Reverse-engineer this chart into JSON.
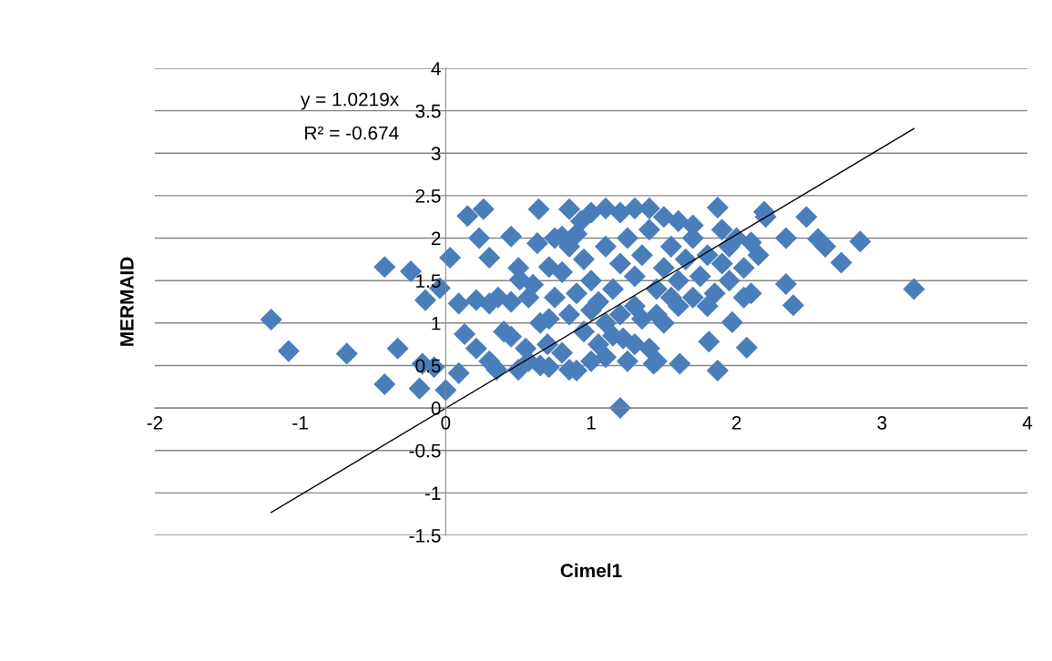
{
  "chart_data": {
    "type": "scatter",
    "xlabel": "Cimel1",
    "ylabel": "MERMAID",
    "annotations": [
      "y = 1.0219x",
      "R² = -0.674"
    ],
    "xlim": [
      -2,
      4
    ],
    "xticks": [
      -2,
      -1,
      0,
      1,
      2,
      3,
      4
    ],
    "ylim": [
      -1.5,
      4
    ],
    "yticks": [
      -1.5,
      -1,
      -0.5,
      0,
      0.5,
      1,
      1.5,
      2,
      2.5,
      3,
      3.5,
      4
    ],
    "grid": "y",
    "series": [
      {
        "marker": "diamond",
        "color": "#4a7ebb",
        "x": [
          -1.2,
          -1.08,
          -0.68,
          -0.42,
          -0.42,
          -0.24,
          -0.33,
          -0.18,
          -0.14,
          0,
          0.03,
          0.15,
          0.26,
          0.23,
          0.64,
          0.85,
          1.2,
          3.22,
          2.85,
          2.48,
          2.56,
          2.61,
          2.72,
          2.34,
          2.39,
          2.19,
          1.87,
          2.34,
          1.97,
          2.07,
          1.81,
          1.87,
          1.61,
          1.43,
          1.25,
          1.22,
          -0.04,
          0.09,
          0.21,
          0.3,
          0.36,
          0.45,
          0.3,
          -0.16,
          -0.08,
          0.09,
          0.13,
          0.21,
          0.3,
          0.45,
          0.57,
          0.71,
          0.9,
          0.71,
          0.57,
          0.51,
          0.63,
          0.8,
          0.93,
          0.71,
          1.0,
          1.1,
          1.2,
          1.3,
          1.4,
          1.5,
          1.6,
          1.7,
          1.9,
          2.0,
          2.1,
          2.2,
          2.15,
          2.05,
          1.95,
          1.85,
          1.7,
          1.6,
          1.5,
          1.45,
          1.35,
          1.3,
          1.4,
          1.45,
          1.1,
          1.05,
          0.95,
          0.85,
          0.75,
          0.8,
          0.85,
          0.9,
          0.95,
          1.0,
          1.05,
          1.1,
          1.15,
          1.2,
          1.25,
          1.3,
          1.35,
          1.4,
          1.45,
          1.5,
          1.55,
          1.6,
          1.65,
          1.7,
          1.75,
          1.8,
          1.9,
          1.95,
          2.05,
          2.1,
          1.8,
          0.6,
          0.5,
          0.45,
          0.65,
          0.7,
          0.55,
          0.4,
          0.35,
          0.5,
          0.65,
          0.8,
          0.85,
          1.0,
          1.15,
          0.75,
          1.1,
          1.3,
          1.55,
          1.0,
          0.9,
          1.2
        ],
        "values": [
          1.04,
          0.67,
          0.64,
          1.66,
          0.28,
          1.61,
          0.7,
          0.23,
          1.27,
          0.21,
          1.77,
          2.26,
          2.34,
          2.0,
          2.34,
          2.34,
          0.0,
          1.4,
          1.96,
          2.25,
          1.99,
          1.9,
          1.71,
          1.46,
          1.21,
          2.31,
          2.36,
          2.0,
          1.01,
          0.71,
          0.78,
          0.44,
          0.52,
          0.52,
          0.55,
          0.82,
          1.41,
          1.23,
          1.27,
          1.23,
          1.3,
          2.02,
          1.77,
          0.52,
          0.48,
          0.41,
          0.87,
          0.7,
          0.55,
          0.84,
          0.55,
          0.48,
          0.44,
          1.05,
          1.3,
          1.51,
          1.94,
          2.02,
          2.2,
          1.66,
          2.3,
          2.35,
          2.3,
          2.35,
          2.35,
          2.25,
          2.2,
          2.15,
          2.1,
          2.0,
          1.95,
          2.25,
          1.8,
          1.65,
          1.5,
          1.35,
          1.3,
          1.2,
          1.0,
          1.1,
          1.05,
          0.75,
          0.7,
          0.55,
          0.6,
          0.75,
          0.9,
          1.1,
          1.3,
          1.6,
          1.9,
          2.05,
          1.75,
          1.5,
          1.25,
          1.0,
          1.4,
          1.7,
          2.0,
          1.55,
          1.8,
          2.1,
          1.4,
          1.65,
          1.9,
          1.5,
          1.75,
          2.0,
          1.55,
          1.8,
          1.7,
          1.9,
          1.3,
          1.35,
          1.2,
          1.45,
          1.65,
          1.25,
          1.0,
          0.75,
          0.7,
          0.9,
          0.45,
          0.45,
          0.5,
          0.65,
          0.45,
          0.55,
          0.85,
          2.0,
          1.9,
          1.2,
          1.3,
          1.15,
          1.35,
          1.1
        ]
      },
      {
        "type": "line",
        "color": "#000000",
        "x": [
          -1.2,
          3.22
        ],
        "values": [
          -1.23,
          3.29
        ]
      }
    ]
  }
}
